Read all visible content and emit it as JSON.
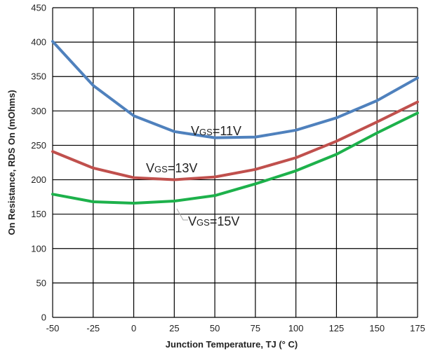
{
  "chart_data": {
    "type": "line",
    "title": "",
    "xlabel": "Junction Temperature, TJ (° C)",
    "ylabel": "On Resistance, RDS On (mOhms)",
    "xlim": [
      -50,
      175
    ],
    "ylim": [
      0,
      450
    ],
    "x_ticks": [
      "-50",
      "-25",
      "0",
      "25",
      "50",
      "75",
      "100",
      "125",
      "150",
      "175"
    ],
    "y_ticks": [
      "0",
      "50",
      "100",
      "150",
      "200",
      "250",
      "300",
      "350",
      "400",
      "450"
    ],
    "grid": true,
    "legend": "none",
    "x": [
      -50,
      -25,
      0,
      25,
      50,
      75,
      100,
      125,
      150,
      175
    ],
    "series": [
      {
        "name": "VGS=11V",
        "label_main": "V",
        "label_sub": "GS",
        "label_rest": "=11V",
        "color": "#4F81BD",
        "values": [
          401,
          337,
          293,
          270,
          261,
          262,
          272,
          290,
          315,
          348
        ]
      },
      {
        "name": "VGS=13V",
        "label_main": "V",
        "label_sub": "GS",
        "label_rest": "=13V",
        "color": "#C0504D",
        "values": [
          241,
          217,
          203,
          200,
          204,
          215,
          232,
          256,
          284,
          313
        ]
      },
      {
        "name": "VGS=15V",
        "label_main": "V",
        "label_sub": "GS",
        "label_rest": "=15V",
        "color": "#1DB14B",
        "values": [
          179,
          168,
          166,
          169,
          177,
          194,
          213,
          237,
          268,
          297
        ]
      }
    ]
  }
}
